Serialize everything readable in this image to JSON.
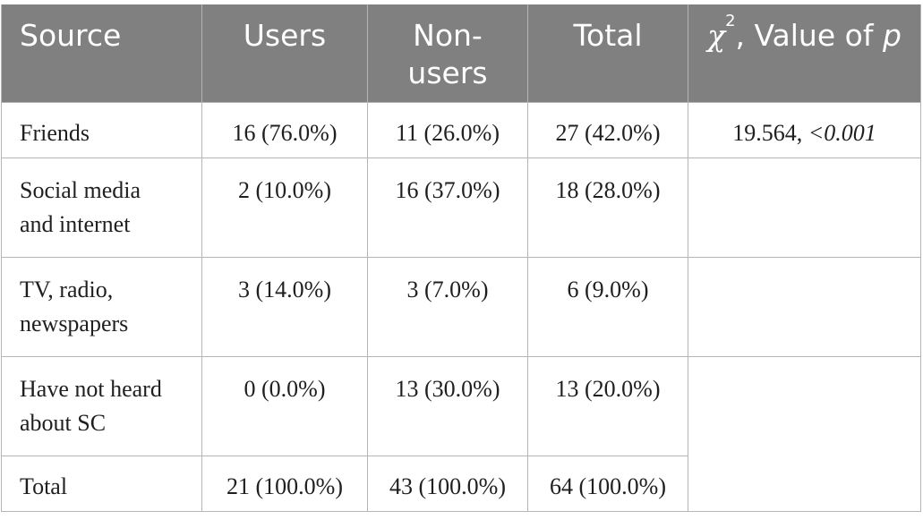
{
  "table": {
    "headers": {
      "source": "Source",
      "users": "Users",
      "non_users_line1": "Non-",
      "non_users_line2": "users",
      "total": "Total",
      "chi_symbol": "χ",
      "chi_superscript": "2",
      "chi_rest": ", Value of ",
      "p_symbol": "p"
    },
    "rows": [
      {
        "label_line1": "Friends",
        "label_line2": "",
        "users": "16 (76.0%)",
        "non_users": "11 (26.0%)",
        "total": "27 (42.0%)",
        "chi_value": "19.564, ",
        "p_value": "<0.001"
      },
      {
        "label_line1": "Social media",
        "label_line2": "and internet",
        "users": "2 (10.0%)",
        "non_users": "16 (37.0%)",
        "total": "18 (28.0%)"
      },
      {
        "label_line1": "TV, radio,",
        "label_line2": "newspapers",
        "users": "3 (14.0%)",
        "non_users": "3 (7.0%)",
        "total": "6 (9.0%)"
      },
      {
        "label_line1": "Have not heard",
        "label_line2": "about SC",
        "users": "0 (0.0%)",
        "non_users": "13 (30.0%)",
        "total": "13 (20.0%)"
      },
      {
        "label_line1": "Total",
        "label_line2": "",
        "users": "21 (100.0%)",
        "non_users": "43 (100.0%)",
        "total": "64 (100.0%)"
      }
    ]
  }
}
